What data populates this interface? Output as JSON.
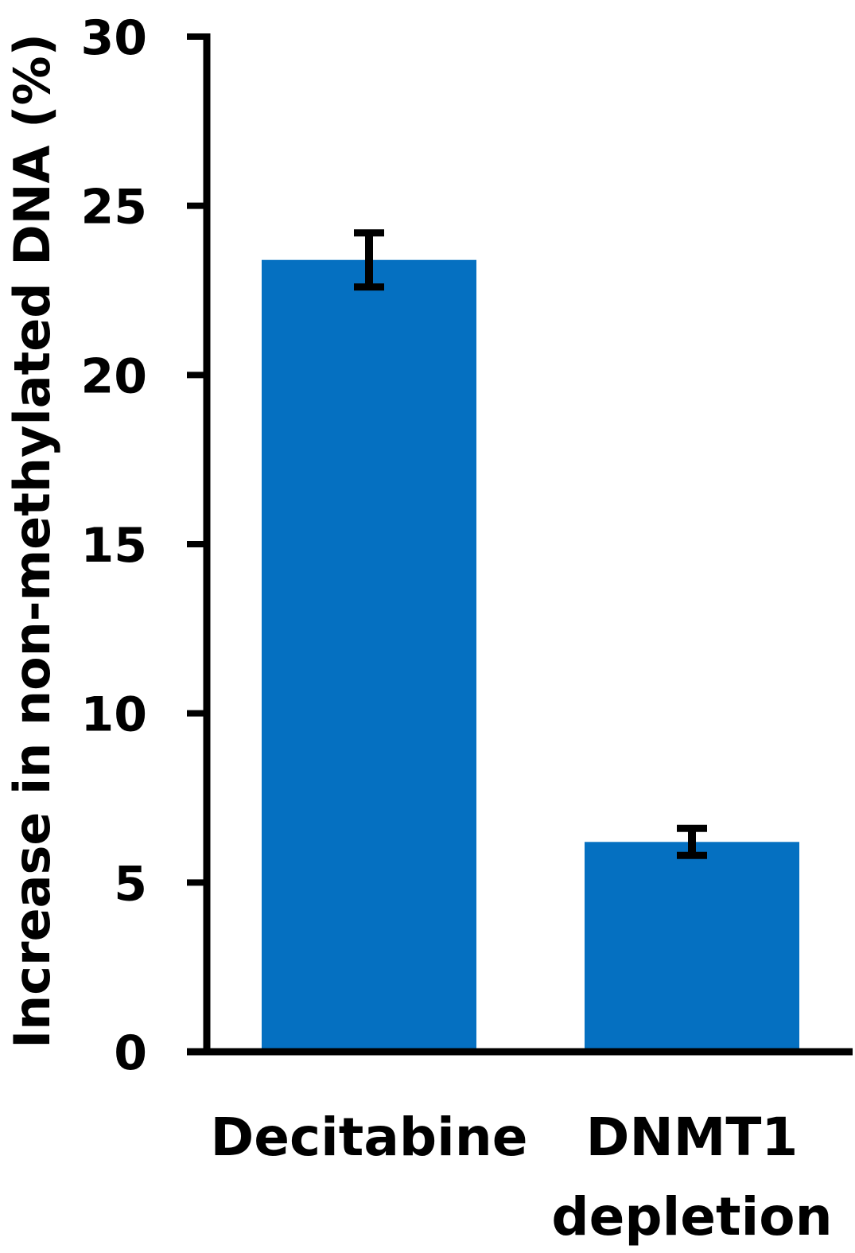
{
  "chart_data": {
    "type": "bar",
    "title": "",
    "xlabel": "",
    "ylabel": "Increase in non-methylated DNA (%)",
    "ylim": [
      0,
      30
    ],
    "yticks": [
      0,
      5,
      10,
      15,
      20,
      25,
      30
    ],
    "categories": [
      [
        "Decitabine"
      ],
      [
        "DNMT1",
        "depletion"
      ]
    ],
    "values": [
      23.4,
      6.2
    ],
    "error": [
      0.8,
      0.4
    ],
    "grid": false,
    "legend": "none"
  },
  "colors": {
    "bar": "#0570C1",
    "axis": "#000000",
    "error_bar": "#000000"
  }
}
